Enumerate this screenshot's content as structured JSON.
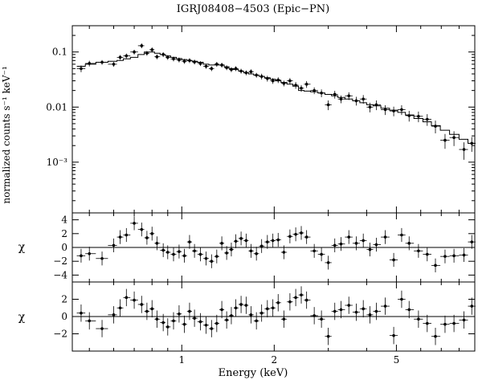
{
  "chart_data": {
    "type": "scatter",
    "title": "IGRJ08408−4503 (Epic−PN)",
    "xlabel": "Energy (keV)",
    "x_scale": "log",
    "xlim": [
      0.44,
      9.0
    ],
    "x_ticks": [
      1,
      2,
      5
    ],
    "x_tick_labels": [
      "1",
      "2",
      "5"
    ],
    "panels": [
      {
        "id": "spectrum",
        "ylabel": "normalized counts s⁻¹ keV⁻¹",
        "y_scale": "log",
        "ylim": [
          0.00012,
          0.3
        ],
        "y_ticks": [
          0.001,
          0.01,
          0.1
        ],
        "y_tick_labels": [
          "10⁻³",
          "0.01",
          "0.1"
        ],
        "series": [
          {
            "kind": "data",
            "x": [
              0.47,
              0.5,
              0.55,
              0.6,
              0.63,
              0.66,
              0.7,
              0.74,
              0.77,
              0.8,
              0.83,
              0.87,
              0.9,
              0.94,
              0.98,
              1.02,
              1.06,
              1.1,
              1.15,
              1.2,
              1.25,
              1.3,
              1.35,
              1.4,
              1.45,
              1.5,
              1.56,
              1.62,
              1.68,
              1.75,
              1.82,
              1.9,
              1.98,
              2.06,
              2.15,
              2.25,
              2.35,
              2.45,
              2.55,
              2.7,
              2.85,
              3.0,
              3.15,
              3.3,
              3.5,
              3.7,
              3.9,
              4.1,
              4.3,
              4.6,
              4.9,
              5.2,
              5.5,
              5.9,
              6.3,
              6.7,
              7.2,
              7.7,
              8.3,
              8.8
            ],
            "y": [
              0.05,
              0.062,
              0.065,
              0.06,
              0.08,
              0.085,
              0.1,
              0.13,
              0.095,
              0.11,
              0.082,
              0.09,
              0.08,
              0.075,
              0.072,
              0.068,
              0.07,
              0.066,
              0.062,
              0.055,
              0.05,
              0.06,
              0.058,
              0.052,
              0.048,
              0.05,
              0.045,
              0.042,
              0.044,
              0.038,
              0.036,
              0.033,
              0.03,
              0.031,
              0.027,
              0.03,
              0.025,
              0.022,
              0.026,
              0.02,
              0.018,
              0.011,
              0.017,
              0.014,
              0.016,
              0.013,
              0.014,
              0.01,
              0.011,
              0.009,
              0.0085,
              0.009,
              0.007,
              0.0068,
              0.006,
              0.0045,
              0.0025,
              0.0028,
              0.0017,
              0.0022
            ],
            "y_err_frac": [
              0.14,
              0.12,
              0.1,
              0.1,
              0.1,
              0.1,
              0.1,
              0.1,
              0.1,
              0.1,
              0.1,
              0.1,
              0.1,
              0.1,
              0.1,
              0.1,
              0.1,
              0.1,
              0.1,
              0.1,
              0.1,
              0.1,
              0.1,
              0.1,
              0.1,
              0.1,
              0.1,
              0.1,
              0.1,
              0.1,
              0.12,
              0.12,
              0.12,
              0.12,
              0.12,
              0.12,
              0.14,
              0.14,
              0.14,
              0.14,
              0.16,
              0.2,
              0.16,
              0.16,
              0.16,
              0.18,
              0.18,
              0.2,
              0.2,
              0.2,
              0.2,
              0.2,
              0.22,
              0.22,
              0.24,
              0.26,
              0.3,
              0.3,
              0.35,
              0.3
            ]
          },
          {
            "kind": "model",
            "x": [
              0.47,
              0.5,
              0.55,
              0.6,
              0.63,
              0.66,
              0.7,
              0.74,
              0.77,
              0.8,
              0.83,
              0.87,
              0.9,
              0.94,
              0.98,
              1.02,
              1.06,
              1.1,
              1.15,
              1.2,
              1.25,
              1.3,
              1.35,
              1.4,
              1.45,
              1.5,
              1.56,
              1.62,
              1.68,
              1.75,
              1.82,
              1.9,
              1.98,
              2.06,
              2.15,
              2.25,
              2.35,
              2.45,
              2.55,
              2.7,
              2.85,
              3.0,
              3.15,
              3.3,
              3.5,
              3.7,
              3.9,
              4.1,
              4.3,
              4.6,
              4.9,
              5.2,
              5.5,
              5.9,
              6.3,
              6.7,
              7.2,
              7.7,
              8.3,
              8.8
            ],
            "y": [
              0.055,
              0.06,
              0.065,
              0.068,
              0.07,
              0.075,
              0.08,
              0.09,
              0.1,
              0.1,
              0.095,
              0.09,
              0.085,
              0.08,
              0.076,
              0.073,
              0.07,
              0.068,
              0.065,
              0.06,
              0.058,
              0.058,
              0.058,
              0.054,
              0.05,
              0.048,
              0.045,
              0.042,
              0.04,
              0.038,
              0.036,
              0.034,
              0.032,
              0.03,
              0.028,
              0.026,
              0.024,
              0.02,
              0.0195,
              0.019,
              0.018,
              0.017,
              0.016,
              0.015,
              0.014,
              0.013,
              0.012,
              0.011,
              0.0105,
              0.0095,
              0.0088,
              0.008,
              0.0072,
              0.0062,
              0.0054,
              0.0046,
              0.0038,
              0.0032,
              0.0026,
              0.0022
            ]
          }
        ]
      },
      {
        "id": "residuals-1",
        "ylabel": "χ",
        "ylim": [
          -5,
          5
        ],
        "y_ticks": [
          -4,
          -2,
          0,
          2,
          4
        ],
        "y_tick_labels": [
          "−4",
          "−2",
          "0",
          "2",
          "4"
        ],
        "series": [
          {
            "kind": "residuals",
            "x": [
              0.47,
              0.5,
              0.55,
              0.6,
              0.63,
              0.66,
              0.7,
              0.74,
              0.77,
              0.8,
              0.83,
              0.87,
              0.9,
              0.94,
              0.98,
              1.02,
              1.06,
              1.1,
              1.15,
              1.2,
              1.25,
              1.3,
              1.35,
              1.4,
              1.45,
              1.5,
              1.56,
              1.62,
              1.68,
              1.75,
              1.82,
              1.9,
              1.98,
              2.06,
              2.15,
              2.25,
              2.35,
              2.45,
              2.55,
              2.7,
              2.85,
              3.0,
              3.15,
              3.3,
              3.5,
              3.7,
              3.9,
              4.1,
              4.3,
              4.6,
              4.9,
              5.2,
              5.5,
              5.9,
              6.3,
              6.7,
              7.2,
              7.7,
              8.3,
              8.8
            ],
            "y": [
              -1.2,
              -0.9,
              -1.6,
              0.3,
              1.5,
              1.8,
              3.5,
              2.6,
              1.4,
              2.0,
              0.6,
              -0.4,
              -0.7,
              -1.0,
              -0.6,
              -1.2,
              0.8,
              -0.5,
              -1.0,
              -1.6,
              -2.0,
              -1.3,
              0.6,
              -0.8,
              -0.3,
              0.9,
              1.3,
              1.0,
              -0.5,
              -0.9,
              0.2,
              0.8,
              1.0,
              1.1,
              -0.7,
              1.6,
              1.9,
              2.1,
              1.5,
              -0.5,
              -1.0,
              -2.2,
              0.3,
              0.5,
              1.5,
              0.6,
              1.0,
              -0.3,
              0.4,
              1.5,
              -1.8,
              1.8,
              0.6,
              -0.5,
              -1.0,
              -2.6,
              -1.3,
              -1.2,
              -1.1,
              0.8
            ],
            "y_err": [
              1,
              1,
              1,
              1,
              1,
              1,
              1,
              1,
              1,
              1,
              1,
              1,
              1,
              1,
              1,
              1,
              1,
              1,
              1,
              1,
              1,
              1,
              1,
              1,
              1,
              1,
              1,
              1,
              1,
              1,
              1,
              1,
              1,
              1,
              1,
              1,
              1,
              1,
              1,
              1,
              1,
              1,
              1,
              1,
              1,
              1,
              1,
              1,
              1,
              1,
              1,
              1,
              1,
              1,
              1,
              1,
              1,
              1,
              1,
              1
            ]
          }
        ]
      },
      {
        "id": "residuals-2",
        "ylabel": "χ",
        "ylim": [
          -4,
          4
        ],
        "y_ticks": [
          -2,
          0,
          2
        ],
        "y_tick_labels": [
          "−2",
          "0",
          "2"
        ],
        "series": [
          {
            "kind": "residuals",
            "x": [
              0.47,
              0.5,
              0.55,
              0.6,
              0.63,
              0.66,
              0.7,
              0.74,
              0.77,
              0.8,
              0.83,
              0.87,
              0.9,
              0.94,
              0.98,
              1.02,
              1.06,
              1.1,
              1.15,
              1.2,
              1.25,
              1.3,
              1.35,
              1.4,
              1.45,
              1.5,
              1.56,
              1.62,
              1.68,
              1.75,
              1.82,
              1.9,
              1.98,
              2.06,
              2.15,
              2.25,
              2.35,
              2.45,
              2.55,
              2.7,
              2.85,
              3.0,
              3.15,
              3.3,
              3.5,
              3.7,
              3.9,
              4.1,
              4.3,
              4.6,
              4.9,
              5.2,
              5.5,
              5.9,
              6.3,
              6.7,
              7.2,
              7.7,
              8.3,
              8.8
            ],
            "y": [
              0.4,
              -0.5,
              -1.4,
              0.2,
              1.0,
              2.2,
              1.9,
              1.4,
              0.6,
              0.9,
              -0.3,
              -0.7,
              -1.2,
              -0.5,
              0.3,
              -0.9,
              0.6,
              -0.2,
              -0.6,
              -1.0,
              -1.4,
              -0.8,
              0.8,
              -0.4,
              0.1,
              1.0,
              1.4,
              1.3,
              0.2,
              -0.5,
              0.4,
              0.9,
              1.0,
              1.6,
              -0.3,
              1.7,
              2.2,
              2.5,
              1.9,
              0.1,
              -0.3,
              -2.3,
              0.6,
              0.8,
              1.3,
              0.5,
              0.9,
              0.2,
              0.6,
              1.2,
              -2.2,
              2.0,
              0.8,
              -0.3,
              -0.8,
              -2.3,
              -0.9,
              -0.8,
              -0.4,
              1.2
            ],
            "y_err": [
              1,
              1,
              1,
              1,
              1,
              1,
              1,
              1,
              1,
              1,
              1,
              1,
              1,
              1,
              1,
              1,
              1,
              1,
              1,
              1,
              1,
              1,
              1,
              1,
              1,
              1,
              1,
              1,
              1,
              1,
              1,
              1,
              1,
              1,
              1,
              1,
              1,
              1,
              1,
              1,
              1,
              1,
              1,
              1,
              1,
              1,
              1,
              1,
              1,
              1,
              1,
              1,
              1,
              1,
              1,
              1,
              1,
              1,
              1,
              1
            ]
          }
        ]
      }
    ]
  }
}
